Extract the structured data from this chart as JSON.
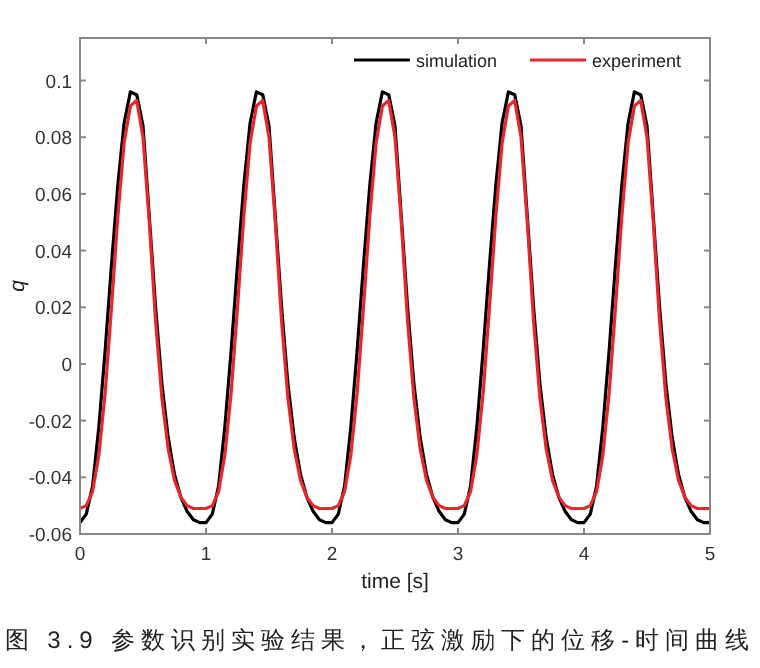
{
  "chart_data": {
    "type": "line",
    "xlabel": "time [s]",
    "ylabel": "q",
    "annotations": [
      "图 3.9 参数识别实验结果，正弦激励下的位移-时间曲线"
    ],
    "x": [
      0,
      0.05,
      0.1,
      0.15,
      0.2,
      0.25,
      0.3,
      0.35,
      0.4,
      0.45,
      0.5,
      0.55,
      0.6,
      0.65,
      0.7,
      0.75,
      0.8,
      0.85,
      0.9,
      0.95,
      1,
      1.05,
      1.1,
      1.15,
      1.2,
      1.25,
      1.3,
      1.35,
      1.4,
      1.45,
      1.5,
      1.55,
      1.6,
      1.65,
      1.7,
      1.75,
      1.8,
      1.85,
      1.9,
      1.95,
      2,
      2.05,
      2.1,
      2.15,
      2.2,
      2.25,
      2.3,
      2.35,
      2.4,
      2.45,
      2.5,
      2.55,
      2.6,
      2.65,
      2.7,
      2.75,
      2.8,
      2.85,
      2.9,
      2.95,
      3,
      3.05,
      3.1,
      3.15,
      3.2,
      3.25,
      3.3,
      3.35,
      3.4,
      3.45,
      3.5,
      3.55,
      3.6,
      3.65,
      3.7,
      3.75,
      3.8,
      3.85,
      3.9,
      3.95,
      4,
      4.05,
      4.1,
      4.15,
      4.2,
      4.25,
      4.3,
      4.35,
      4.4,
      4.45,
      4.5,
      4.55,
      4.6,
      4.65,
      4.7,
      4.75,
      4.8,
      4.85,
      4.9,
      4.95,
      5
    ],
    "series": [
      {
        "name": "simulation",
        "color": "#000000",
        "values": [
          -0.056,
          -0.053,
          -0.043,
          -0.022,
          0.005,
          0.035,
          0.063,
          0.085,
          0.096,
          0.095,
          0.084,
          0.052,
          0.02,
          -0.007,
          -0.026,
          -0.039,
          -0.047,
          -0.052,
          -0.055,
          -0.056,
          -0.056,
          -0.053,
          -0.043,
          -0.022,
          0.005,
          0.035,
          0.063,
          0.085,
          0.096,
          0.095,
          0.084,
          0.052,
          0.02,
          -0.007,
          -0.026,
          -0.039,
          -0.047,
          -0.052,
          -0.055,
          -0.056,
          -0.056,
          -0.053,
          -0.043,
          -0.022,
          0.005,
          0.035,
          0.063,
          0.085,
          0.096,
          0.095,
          0.084,
          0.052,
          0.02,
          -0.007,
          -0.026,
          -0.039,
          -0.047,
          -0.052,
          -0.055,
          -0.056,
          -0.056,
          -0.053,
          -0.043,
          -0.022,
          0.005,
          0.035,
          0.063,
          0.085,
          0.096,
          0.095,
          0.084,
          0.052,
          0.02,
          -0.007,
          -0.026,
          -0.039,
          -0.047,
          -0.052,
          -0.055,
          -0.056,
          -0.056,
          -0.053,
          -0.043,
          -0.022,
          0.005,
          0.035,
          0.063,
          0.085,
          0.096,
          0.095,
          0.084,
          0.052,
          0.02,
          -0.007,
          -0.026,
          -0.039,
          -0.047,
          -0.052,
          -0.055,
          -0.056,
          -0.056
        ]
      },
      {
        "name": "experiment",
        "color": "#e8262e",
        "values": [
          -0.051,
          -0.05,
          -0.045,
          -0.032,
          -0.01,
          0.02,
          0.052,
          0.078,
          0.091,
          0.093,
          0.08,
          0.05,
          0.015,
          -0.012,
          -0.03,
          -0.041,
          -0.047,
          -0.05,
          -0.051,
          -0.051,
          -0.051,
          -0.05,
          -0.045,
          -0.032,
          -0.01,
          0.02,
          0.052,
          0.078,
          0.091,
          0.093,
          0.08,
          0.05,
          0.015,
          -0.012,
          -0.03,
          -0.041,
          -0.047,
          -0.05,
          -0.051,
          -0.051,
          -0.051,
          -0.05,
          -0.045,
          -0.032,
          -0.01,
          0.02,
          0.052,
          0.078,
          0.091,
          0.093,
          0.08,
          0.05,
          0.015,
          -0.012,
          -0.03,
          -0.041,
          -0.047,
          -0.05,
          -0.051,
          -0.051,
          -0.051,
          -0.05,
          -0.045,
          -0.032,
          -0.01,
          0.02,
          0.052,
          0.078,
          0.091,
          0.093,
          0.08,
          0.05,
          0.015,
          -0.012,
          -0.03,
          -0.041,
          -0.047,
          -0.05,
          -0.051,
          -0.051,
          -0.051,
          -0.05,
          -0.045,
          -0.032,
          -0.01,
          0.02,
          0.052,
          0.078,
          0.091,
          0.093,
          0.08,
          0.05,
          0.015,
          -0.012,
          -0.03,
          -0.041,
          -0.047,
          -0.05,
          -0.051,
          -0.051,
          -0.051
        ]
      }
    ],
    "xlim": [
      0,
      5
    ],
    "ylim": [
      -0.06,
      0.115
    ],
    "xticks": [
      0,
      1,
      2,
      3,
      4,
      5
    ],
    "yticks": [
      -0.06,
      -0.04,
      -0.02,
      0,
      0.02,
      0.04,
      0.06,
      0.08,
      0.1
    ],
    "grid": false,
    "legend": "top right",
    "marker": "none",
    "line_style": "solid"
  }
}
